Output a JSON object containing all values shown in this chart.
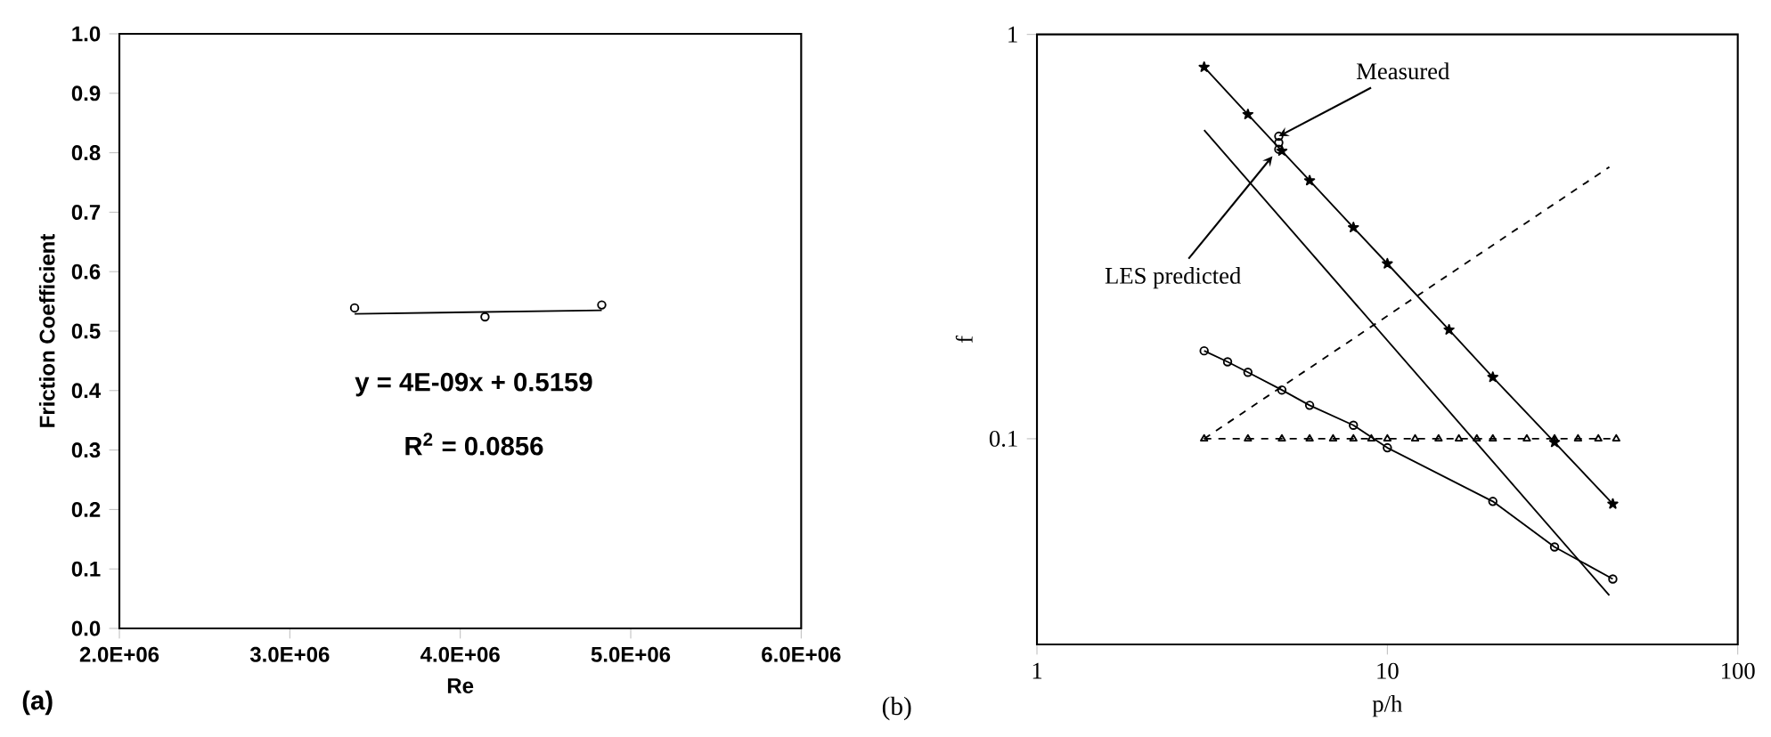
{
  "chart_data": [
    {
      "type": "scatter",
      "xlabel": "Re",
      "ylabel": "Friction Coefficient",
      "xlim": [
        2000000,
        6000000
      ],
      "ylim": [
        0,
        1
      ],
      "xticks": [
        {
          "value": 2000000,
          "label": "2.0E+06"
        },
        {
          "value": 3000000,
          "label": "3.0E+06"
        },
        {
          "value": 4000000,
          "label": "4.0E+06"
        },
        {
          "value": 5000000,
          "label": "5.0E+06"
        },
        {
          "value": 6000000,
          "label": "6.0E+06"
        }
      ],
      "yticks": [
        {
          "value": 0,
          "label": "0.0"
        },
        0.1,
        0.2,
        0.3,
        0.4,
        0.5,
        0.6,
        0.7,
        0.8,
        0.9,
        {
          "value": 1,
          "label": "1.0"
        }
      ],
      "series": [
        {
          "color": "#000000",
          "marker": "circle",
          "x": [
            3380000,
            4145000,
            4830000
          ],
          "values": [
            0.539,
            0.524,
            0.544
          ]
        },
        {
          "type": "line",
          "color": "#000000",
          "marker": "none",
          "line_style": "solid",
          "x": [
            3380000,
            4830000
          ],
          "values": [
            0.529,
            0.535
          ]
        }
      ],
      "annotations": [
        "y = 4E-09x + 0.5159",
        "R$^{2}$ = 0.0856",
        "(a)"
      ]
    },
    {
      "type": "line",
      "xlabel": "p/h",
      "ylabel": "f",
      "log": "xy",
      "xlim": [
        1,
        100
      ],
      "ylim": [
        0.031,
        1
      ],
      "xticks": [
        1,
        10,
        100
      ],
      "yticks": [
        0.1,
        1
      ],
      "series": [
        {
          "color": "#000000",
          "marker": "star",
          "line_style": "solid",
          "x": [
            3,
            4,
            5,
            6,
            8,
            10,
            15,
            20,
            30,
            44
          ],
          "values": [
            0.83,
            0.634,
            0.515,
            0.435,
            0.333,
            0.271,
            0.186,
            0.142,
            0.098,
            0.069
          ]
        },
        {
          "color": "#000000",
          "marker": "none",
          "line_style": "solid",
          "x": [
            3,
            43
          ],
          "values": [
            0.58,
            0.041
          ]
        },
        {
          "color": "#000000",
          "line_style": "dashed",
          "x": [
            3,
            43
          ],
          "values": [
            0.1,
            0.47
          ]
        },
        {
          "color": "#000000",
          "marker": "triangle",
          "line_style": "dashed",
          "x": [
            3,
            4,
            5,
            6,
            7,
            8,
            9,
            10,
            12,
            14,
            16,
            18,
            20,
            25,
            30,
            35,
            40,
            45
          ],
          "values": [
            0.1,
            0.1,
            0.1,
            0.1,
            0.1,
            0.1,
            0.1,
            0.1,
            0.1,
            0.1,
            0.1,
            0.1,
            0.1,
            0.1,
            0.1,
            0.1,
            0.1,
            0.1
          ]
        },
        {
          "color": "#000000",
          "marker": "circle",
          "line_style": "solid",
          "x": [
            3,
            3.5,
            4,
            5,
            6,
            8,
            10,
            20,
            30,
            44
          ],
          "values": [
            0.165,
            0.155,
            0.146,
            0.132,
            0.121,
            0.108,
            0.095,
            0.07,
            0.054,
            0.045
          ]
        },
        {
          "type": "scatter",
          "color": "#000000",
          "marker": "circle",
          "x": [
            4.9,
            4.9,
            4.9
          ],
          "values": [
            0.56,
            0.54,
            0.52
          ]
        }
      ],
      "annotations": [
        {
          "text": "Measured",
          "x": 4.9,
          "y": 0.56
        },
        {
          "text": "LES predicted",
          "x": 4.7,
          "y": 0.5
        },
        "(b)"
      ]
    }
  ]
}
